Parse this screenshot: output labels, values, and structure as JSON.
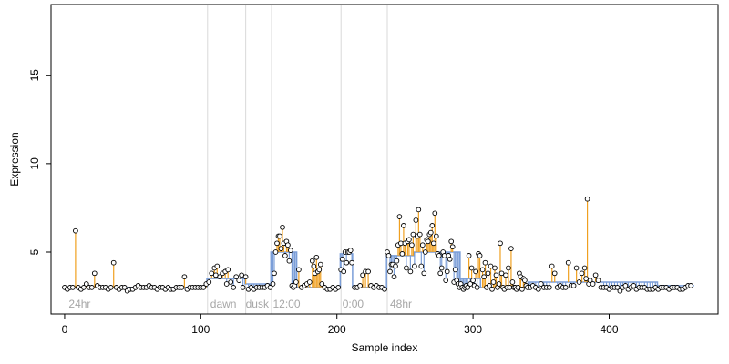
{
  "chart_data": {
    "type": "scatter",
    "title": "",
    "xlabel": "Sample index",
    "ylabel": "Expression",
    "xlim": [
      -10,
      480
    ],
    "ylim": [
      1.5,
      19.0
    ],
    "x_ticks": [
      0,
      100,
      200,
      300,
      400
    ],
    "y_ticks": [
      5,
      10,
      15
    ],
    "grid": false,
    "legend": "none",
    "colors": {
      "up_segment": "#f0a020",
      "down_segment": "#7b9ed8",
      "baseline": "#7b9ed8",
      "point_fill": "#ffffff",
      "point_stroke": "#000000",
      "vline": "#d9d9d9",
      "annotation": "#a6a6a6"
    },
    "vlines": [
      105,
      133,
      152,
      203,
      237
    ],
    "annotations": [
      {
        "x": 3,
        "label": "24hr"
      },
      {
        "x": 107,
        "label": "dawn"
      },
      {
        "x": 133,
        "label": "dusk"
      },
      {
        "x": 153,
        "label": "12:00"
      },
      {
        "x": 204,
        "label": "0:00"
      },
      {
        "x": 239,
        "label": "48hr"
      }
    ],
    "baseline_segments": [
      {
        "x0": 0,
        "x1": 104,
        "y": 3.0
      },
      {
        "x0": 105,
        "x1": 132,
        "y": 3.5
      },
      {
        "x0": 133,
        "x1": 151,
        "y": 3.2
      },
      {
        "x0": 152,
        "x1": 170,
        "y": 5.0
      },
      {
        "x0": 171,
        "x1": 202,
        "y": 3.0
      },
      {
        "x0": 203,
        "x1": 211,
        "y": 4.9
      },
      {
        "x0": 212,
        "x1": 236,
        "y": 3.0
      },
      {
        "x0": 237,
        "x1": 256,
        "y": 4.8
      },
      {
        "x0": 257,
        "x1": 290,
        "y": 5.0
      },
      {
        "x0": 291,
        "x1": 305,
        "y": 3.5
      },
      {
        "x0": 306,
        "x1": 340,
        "y": 3.0
      },
      {
        "x0": 341,
        "x1": 435,
        "y": 3.3
      },
      {
        "x0": 436,
        "x1": 462,
        "y": 3.1
      }
    ],
    "points": [
      [
        0,
        3.0
      ],
      [
        2,
        2.9
      ],
      [
        4,
        3.0
      ],
      [
        6,
        3.0
      ],
      [
        8,
        6.2
      ],
      [
        10,
        3.0
      ],
      [
        12,
        2.9
      ],
      [
        14,
        3.0
      ],
      [
        16,
        3.2
      ],
      [
        18,
        3.0
      ],
      [
        20,
        3.0
      ],
      [
        22,
        3.8
      ],
      [
        24,
        3.1
      ],
      [
        26,
        3.0
      ],
      [
        28,
        3.0
      ],
      [
        30,
        3.0
      ],
      [
        32,
        2.9
      ],
      [
        34,
        3.0
      ],
      [
        36,
        4.4
      ],
      [
        38,
        3.0
      ],
      [
        40,
        2.9
      ],
      [
        42,
        3.0
      ],
      [
        44,
        3.0
      ],
      [
        46,
        2.8
      ],
      [
        48,
        2.9
      ],
      [
        50,
        2.9
      ],
      [
        52,
        3.0
      ],
      [
        54,
        3.1
      ],
      [
        56,
        3.0
      ],
      [
        58,
        3.0
      ],
      [
        60,
        3.0
      ],
      [
        62,
        3.1
      ],
      [
        64,
        3.0
      ],
      [
        66,
        3.0
      ],
      [
        68,
        2.9
      ],
      [
        70,
        3.0
      ],
      [
        72,
        3.0
      ],
      [
        74,
        2.9
      ],
      [
        76,
        3.0
      ],
      [
        78,
        2.9
      ],
      [
        80,
        2.9
      ],
      [
        82,
        3.0
      ],
      [
        84,
        3.0
      ],
      [
        86,
        3.0
      ],
      [
        88,
        3.6
      ],
      [
        90,
        2.9
      ],
      [
        92,
        3.0
      ],
      [
        94,
        3.0
      ],
      [
        96,
        3.0
      ],
      [
        98,
        3.0
      ],
      [
        100,
        3.0
      ],
      [
        102,
        3.0
      ],
      [
        104,
        3.2
      ],
      [
        106,
        3.3
      ],
      [
        108,
        3.8
      ],
      [
        110,
        4.1
      ],
      [
        111,
        3.7
      ],
      [
        112,
        4.2
      ],
      [
        114,
        3.6
      ],
      [
        116,
        3.8
      ],
      [
        118,
        3.9
      ],
      [
        119,
        3.2
      ],
      [
        120,
        4.0
      ],
      [
        122,
        3.3
      ],
      [
        124,
        3.0
      ],
      [
        126,
        3.6
      ],
      [
        128,
        3.4
      ],
      [
        130,
        3.7
      ],
      [
        131,
        3.0
      ],
      [
        133,
        3.6
      ],
      [
        135,
        2.9
      ],
      [
        137,
        3.0
      ],
      [
        139,
        2.9
      ],
      [
        141,
        3.0
      ],
      [
        143,
        3.0
      ],
      [
        145,
        3.0
      ],
      [
        147,
        3.0
      ],
      [
        149,
        3.1
      ],
      [
        151,
        3.0
      ],
      [
        153,
        3.2
      ],
      [
        154,
        3.8
      ],
      [
        155,
        5.0
      ],
      [
        156,
        5.5
      ],
      [
        157,
        5.9
      ],
      [
        158,
        5.9
      ],
      [
        159,
        5.2
      ],
      [
        160,
        6.4
      ],
      [
        161,
        5.5
      ],
      [
        162,
        4.8
      ],
      [
        163,
        5.6
      ],
      [
        164,
        5.4
      ],
      [
        165,
        4.5
      ],
      [
        166,
        5.1
      ],
      [
        167,
        3.1
      ],
      [
        168,
        3.0
      ],
      [
        169,
        3.1
      ],
      [
        170,
        3.3
      ],
      [
        172,
        4.0
      ],
      [
        174,
        3.0
      ],
      [
        176,
        3.1
      ],
      [
        178,
        3.2
      ],
      [
        180,
        3.3
      ],
      [
        182,
        4.5
      ],
      [
        183,
        4.2
      ],
      [
        184,
        3.8
      ],
      [
        185,
        4.7
      ],
      [
        186,
        3.9
      ],
      [
        187,
        4.0
      ],
      [
        188,
        4.3
      ],
      [
        189,
        3.2
      ],
      [
        191,
        3.0
      ],
      [
        193,
        2.9
      ],
      [
        195,
        2.9
      ],
      [
        197,
        3.0
      ],
      [
        199,
        2.9
      ],
      [
        201,
        3.0
      ],
      [
        203,
        4.0
      ],
      [
        204,
        4.6
      ],
      [
        205,
        3.9
      ],
      [
        206,
        5.0
      ],
      [
        207,
        4.4
      ],
      [
        208,
        5.0
      ],
      [
        209,
        5.0
      ],
      [
        210,
        5.1
      ],
      [
        211,
        4.4
      ],
      [
        213,
        3.0
      ],
      [
        215,
        3.0
      ],
      [
        217,
        3.1
      ],
      [
        219,
        3.7
      ],
      [
        221,
        3.9
      ],
      [
        223,
        3.9
      ],
      [
        225,
        3.1
      ],
      [
        227,
        3.0
      ],
      [
        229,
        3.1
      ],
      [
        231,
        3.0
      ],
      [
        233,
        3.0
      ],
      [
        235,
        2.9
      ],
      [
        237,
        5.0
      ],
      [
        238,
        4.8
      ],
      [
        239,
        3.9
      ],
      [
        240,
        4.3
      ],
      [
        241,
        4.3
      ],
      [
        242,
        3.6
      ],
      [
        243,
        4.2
      ],
      [
        244,
        4.5
      ],
      [
        245,
        5.4
      ],
      [
        246,
        7.0
      ],
      [
        247,
        5.5
      ],
      [
        248,
        4.9
      ],
      [
        249,
        6.5
      ],
      [
        250,
        5.5
      ],
      [
        251,
        4.1
      ],
      [
        252,
        5.6
      ],
      [
        253,
        5.7
      ],
      [
        254,
        3.9
      ],
      [
        255,
        5.4
      ],
      [
        256,
        6.0
      ],
      [
        257,
        4.2
      ],
      [
        258,
        6.8
      ],
      [
        259,
        5.9
      ],
      [
        260,
        7.4
      ],
      [
        261,
        6.0
      ],
      [
        262,
        4.2
      ],
      [
        263,
        5.4
      ],
      [
        264,
        3.8
      ],
      [
        265,
        5.0
      ],
      [
        266,
        5.7
      ],
      [
        267,
        5.6
      ],
      [
        268,
        6.0
      ],
      [
        269,
        6.1
      ],
      [
        270,
        6.5
      ],
      [
        271,
        5.5
      ],
      [
        272,
        7.2
      ],
      [
        273,
        5.9
      ],
      [
        274,
        4.9
      ],
      [
        275,
        4.8
      ],
      [
        276,
        3.8
      ],
      [
        277,
        4.1
      ],
      [
        278,
        5.0
      ],
      [
        279,
        4.8
      ],
      [
        280,
        3.4
      ],
      [
        281,
        3.9
      ],
      [
        282,
        4.8
      ],
      [
        283,
        4.6
      ],
      [
        284,
        5.6
      ],
      [
        285,
        5.3
      ],
      [
        286,
        3.3
      ],
      [
        287,
        4.0
      ],
      [
        288,
        3.4
      ],
      [
        289,
        3.2
      ],
      [
        290,
        3.0
      ],
      [
        291,
        3.2
      ],
      [
        292,
        3.0
      ],
      [
        293,
        2.9
      ],
      [
        294,
        3.0
      ],
      [
        295,
        3.1
      ],
      [
        296,
        3.0
      ],
      [
        297,
        4.8
      ],
      [
        298,
        3.2
      ],
      [
        299,
        4.1
      ],
      [
        300,
        3.4
      ],
      [
        301,
        3.1
      ],
      [
        302,
        3.9
      ],
      [
        303,
        3.0
      ],
      [
        304,
        4.9
      ],
      [
        305,
        4.8
      ],
      [
        307,
        4.0
      ],
      [
        308,
        3.6
      ],
      [
        309,
        4.4
      ],
      [
        310,
        3.0
      ],
      [
        311,
        3.8
      ],
      [
        312,
        3.1
      ],
      [
        313,
        4.2
      ],
      [
        314,
        2.9
      ],
      [
        315,
        3.3
      ],
      [
        316,
        4.1
      ],
      [
        317,
        3.7
      ],
      [
        318,
        3.0
      ],
      [
        319,
        3.2
      ],
      [
        320,
        5.5
      ],
      [
        321,
        3.8
      ],
      [
        322,
        3.0
      ],
      [
        323,
        2.9
      ],
      [
        324,
        3.7
      ],
      [
        325,
        3.0
      ],
      [
        326,
        4.1
      ],
      [
        327,
        3.0
      ],
      [
        328,
        5.2
      ],
      [
        329,
        3.3
      ],
      [
        330,
        3.0
      ],
      [
        331,
        3.0
      ],
      [
        332,
        2.9
      ],
      [
        333,
        3.0
      ],
      [
        334,
        3.8
      ],
      [
        335,
        3.6
      ],
      [
        336,
        2.9
      ],
      [
        337,
        3.5
      ],
      [
        338,
        3.4
      ],
      [
        339,
        3.1
      ],
      [
        340,
        3.0
      ],
      [
        342,
        3.0
      ],
      [
        344,
        3.1
      ],
      [
        346,
        3.0
      ],
      [
        348,
        2.9
      ],
      [
        350,
        3.2
      ],
      [
        352,
        3.0
      ],
      [
        354,
        3.0
      ],
      [
        356,
        3.0
      ],
      [
        358,
        4.2
      ],
      [
        360,
        3.8
      ],
      [
        362,
        3.0
      ],
      [
        364,
        3.1
      ],
      [
        366,
        3.0
      ],
      [
        368,
        3.0
      ],
      [
        370,
        4.4
      ],
      [
        372,
        3.1
      ],
      [
        374,
        3.1
      ],
      [
        376,
        4.1
      ],
      [
        378,
        3.3
      ],
      [
        380,
        3.8
      ],
      [
        382,
        4.1
      ],
      [
        383,
        3.5
      ],
      [
        384,
        8.0
      ],
      [
        385,
        3.2
      ],
      [
        386,
        3.4
      ],
      [
        388,
        3.2
      ],
      [
        390,
        3.7
      ],
      [
        392,
        3.4
      ],
      [
        394,
        3.0
      ],
      [
        396,
        3.0
      ],
      [
        398,
        3.0
      ],
      [
        400,
        2.9
      ],
      [
        402,
        3.0
      ],
      [
        404,
        3.0
      ],
      [
        406,
        3.0
      ],
      [
        408,
        2.8
      ],
      [
        410,
        3.0
      ],
      [
        412,
        3.1
      ],
      [
        414,
        2.9
      ],
      [
        416,
        3.0
      ],
      [
        418,
        3.1
      ],
      [
        420,
        2.9
      ],
      [
        422,
        3.0
      ],
      [
        424,
        3.0
      ],
      [
        426,
        3.0
      ],
      [
        428,
        2.9
      ],
      [
        430,
        2.9
      ],
      [
        432,
        2.9
      ],
      [
        434,
        3.0
      ],
      [
        436,
        2.9
      ],
      [
        438,
        3.0
      ],
      [
        440,
        3.0
      ],
      [
        442,
        3.0
      ],
      [
        444,
        2.9
      ],
      [
        446,
        3.0
      ],
      [
        448,
        3.0
      ],
      [
        450,
        3.0
      ],
      [
        452,
        2.9
      ],
      [
        454,
        2.9
      ],
      [
        456,
        3.0
      ],
      [
        458,
        3.1
      ],
      [
        460,
        3.1
      ]
    ]
  }
}
